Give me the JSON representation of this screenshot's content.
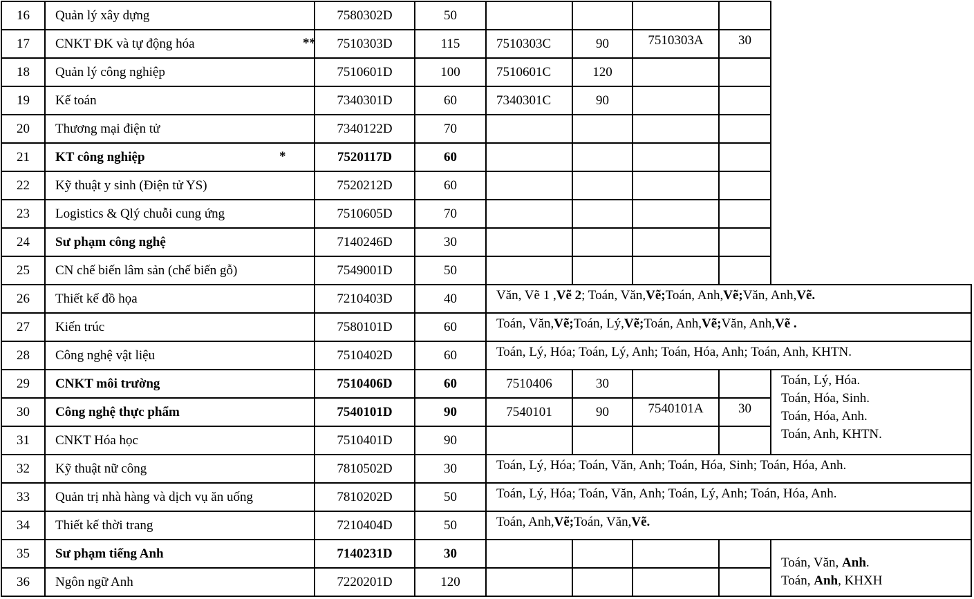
{
  "rows": [
    {
      "stt": "16",
      "name": "Quản lý xây dựng",
      "star": "**",
      "code": "7580302D",
      "quota": "50",
      "bold": false,
      "extra": [
        "",
        "",
        "",
        ""
      ]
    },
    {
      "stt": "17",
      "name": "CNKT ĐK và tự động hóa",
      "star": "**",
      "code": "7510303D",
      "quota": "115",
      "bold": false,
      "extra": [
        "7510303C",
        "90",
        "7510303A",
        "30"
      ]
    },
    {
      "stt": "18",
      "name": "Quản lý công nghiệp",
      "star": "",
      "code": "7510601D",
      "quota": "100",
      "bold": false,
      "extra": [
        "7510601C",
        "120",
        "",
        ""
      ]
    },
    {
      "stt": "19",
      "name": "Kế toán",
      "star": "",
      "code": "7340301D",
      "quota": "60",
      "bold": false,
      "extra": [
        "7340301C",
        "90",
        "",
        ""
      ]
    },
    {
      "stt": "20",
      "name": "Thương mại điện tử",
      "star": "",
      "code": "7340122D",
      "quota": "70",
      "bold": false,
      "extra": [
        "",
        "",
        "",
        ""
      ]
    },
    {
      "stt": "21",
      "name": "KT công nghiệp",
      "star": "*",
      "code": "7520117D",
      "quota": "60",
      "bold": true,
      "extra": [
        "",
        "",
        "",
        ""
      ]
    },
    {
      "stt": "22",
      "name": "Kỹ thuật y sinh (Điện tử YS)",
      "star": "**",
      "code": "7520212D",
      "quota": "60",
      "bold": false,
      "extra": [
        "",
        "",
        "",
        ""
      ]
    },
    {
      "stt": "23",
      "name": "Logistics & Qlý chuỗi cung ứng",
      "star": "",
      "code": "7510605D",
      "quota": "70",
      "bold": false,
      "extra": [
        "",
        "",
        "",
        ""
      ]
    },
    {
      "stt": "24",
      "name": "Sư phạm công nghệ",
      "star": "",
      "code": "7140246D",
      "quota": "30",
      "bold": false,
      "name_bold": true,
      "extra": [
        "",
        "",
        "",
        ""
      ]
    },
    {
      "stt": "25",
      "name": "CN chế biến lâm sản (chế biến gỗ)",
      "star": "**",
      "code": "7549001D",
      "quota": "50",
      "bold": false,
      "extra": [
        "",
        "",
        "",
        ""
      ]
    },
    {
      "stt": "26",
      "name": "Thiết kế đồ họa",
      "star": "",
      "code": "7210403D",
      "quota": "40",
      "bold": false,
      "combo": [
        {
          "t": "Văn, Vẽ 1 , ",
          "b": false
        },
        {
          "t": "Vẽ 2",
          "b": true
        },
        {
          "t": "; Toán, Văn, ",
          "b": false
        },
        {
          "t": "Vẽ;",
          "b": true
        },
        {
          "t": " Toán, Anh, ",
          "b": false
        },
        {
          "t": "Vẽ;",
          "b": true
        },
        {
          "t": " Văn, Anh, ",
          "b": false
        },
        {
          "t": "Vẽ.",
          "b": true
        }
      ]
    },
    {
      "stt": "27",
      "name": "Kiến trúc",
      "star": "",
      "code": "7580101D",
      "quota": "60",
      "bold": false,
      "combo": [
        {
          "t": "Toán, Văn, ",
          "b": false
        },
        {
          "t": "Vẽ;",
          "b": true
        },
        {
          "t": " Toán, Lý, ",
          "b": false
        },
        {
          "t": "Vẽ;",
          "b": true
        },
        {
          "t": " Toán, Anh, ",
          "b": false
        },
        {
          "t": "Vẽ;",
          "b": true
        },
        {
          "t": " Văn, Anh, ",
          "b": false
        },
        {
          "t": "Vẽ .",
          "b": true
        }
      ]
    },
    {
      "stt": "28",
      "name": "Công nghệ vật liệu",
      "star": "",
      "code": "7510402D",
      "quota": "60",
      "bold": false,
      "combo": [
        {
          "t": "Toán, Lý, Hóa; Toán, Lý, Anh; Toán, Hóa, Anh; Toán, Anh, KHTN.",
          "b": false
        }
      ]
    },
    {
      "stt": "29",
      "name": "CNKT môi trường",
      "star": "",
      "code": "7510406D",
      "quota": "60",
      "bold": true,
      "extra": [
        "7510406",
        "30",
        "",
        ""
      ]
    },
    {
      "stt": "30",
      "name": "Công nghệ thực phẩm",
      "star": "",
      "code": "7540101D",
      "quota": "90",
      "bold": true,
      "extra": [
        "7540101",
        "90",
        "7540101A",
        "30"
      ]
    },
    {
      "stt": "31",
      "name": "CNKT Hóa học",
      "star": "",
      "code": "7510401D",
      "quota": "90",
      "bold": false,
      "extra": [
        "",
        "",
        "",
        ""
      ]
    },
    {
      "stt": "32",
      "name": "Kỹ thuật nữ công",
      "star": "",
      "code": "7810502D",
      "quota": "30",
      "bold": false,
      "combo": [
        {
          "t": "Toán, Lý, Hóa; Toán, Văn, Anh; Toán, Hóa, Sinh; Toán, Hóa, Anh.",
          "b": false
        }
      ]
    },
    {
      "stt": "33",
      "name": "Quản trị nhà hàng và dịch vụ ăn uống",
      "star": "",
      "code": "7810202D",
      "quota": "50",
      "bold": false,
      "combo": [
        {
          "t": "Toán, Lý, Hóa; Toán, Văn, Anh; Toán, Lý, Anh; Toán, Hóa, Anh.",
          "b": false
        }
      ]
    },
    {
      "stt": "34",
      "name": "Thiết kế thời trang",
      "star": "",
      "code": "7210404D",
      "quota": "50",
      "bold": false,
      "combo": [
        {
          "t": "Toán, Anh, ",
          "b": false
        },
        {
          "t": "Vẽ;",
          "b": true
        },
        {
          "t": " Toán, Văn, ",
          "b": false
        },
        {
          "t": "Vẽ.",
          "b": true
        }
      ]
    },
    {
      "stt": "35",
      "name": "Sư phạm tiếng Anh",
      "star": "",
      "code": "7140231D",
      "quota": "30",
      "bold": true,
      "extra": [
        "",
        "",
        "",
        ""
      ]
    },
    {
      "stt": "36",
      "name": "Ngôn ngữ Anh",
      "star": "",
      "code": "7220201D",
      "quota": "120",
      "bold": false,
      "extra": [
        "",
        "",
        "",
        ""
      ]
    }
  ],
  "merged_subjects": [
    {
      "rows": [
        "29",
        "30",
        "31"
      ],
      "lines": [
        [
          {
            "t": "Toán, Lý, Hóa.",
            "b": false
          }
        ],
        [
          {
            "t": "Toán, Hóa, Sinh.",
            "b": false
          }
        ],
        [
          {
            "t": "Toán, Hóa, Anh.",
            "b": false
          }
        ],
        [
          {
            "t": "Toán, Anh, KHTN.",
            "b": false
          }
        ]
      ]
    },
    {
      "rows": [
        "35",
        "36"
      ],
      "lines": [
        [
          {
            "t": "Toán, Văn, ",
            "b": false
          },
          {
            "t": "Anh",
            "b": true
          },
          {
            "t": ".",
            "b": false
          }
        ],
        [
          {
            "t": "Toán, ",
            "b": false
          },
          {
            "t": "Anh",
            "b": true
          },
          {
            "t": ", KHXH",
            "b": false
          }
        ]
      ]
    }
  ]
}
